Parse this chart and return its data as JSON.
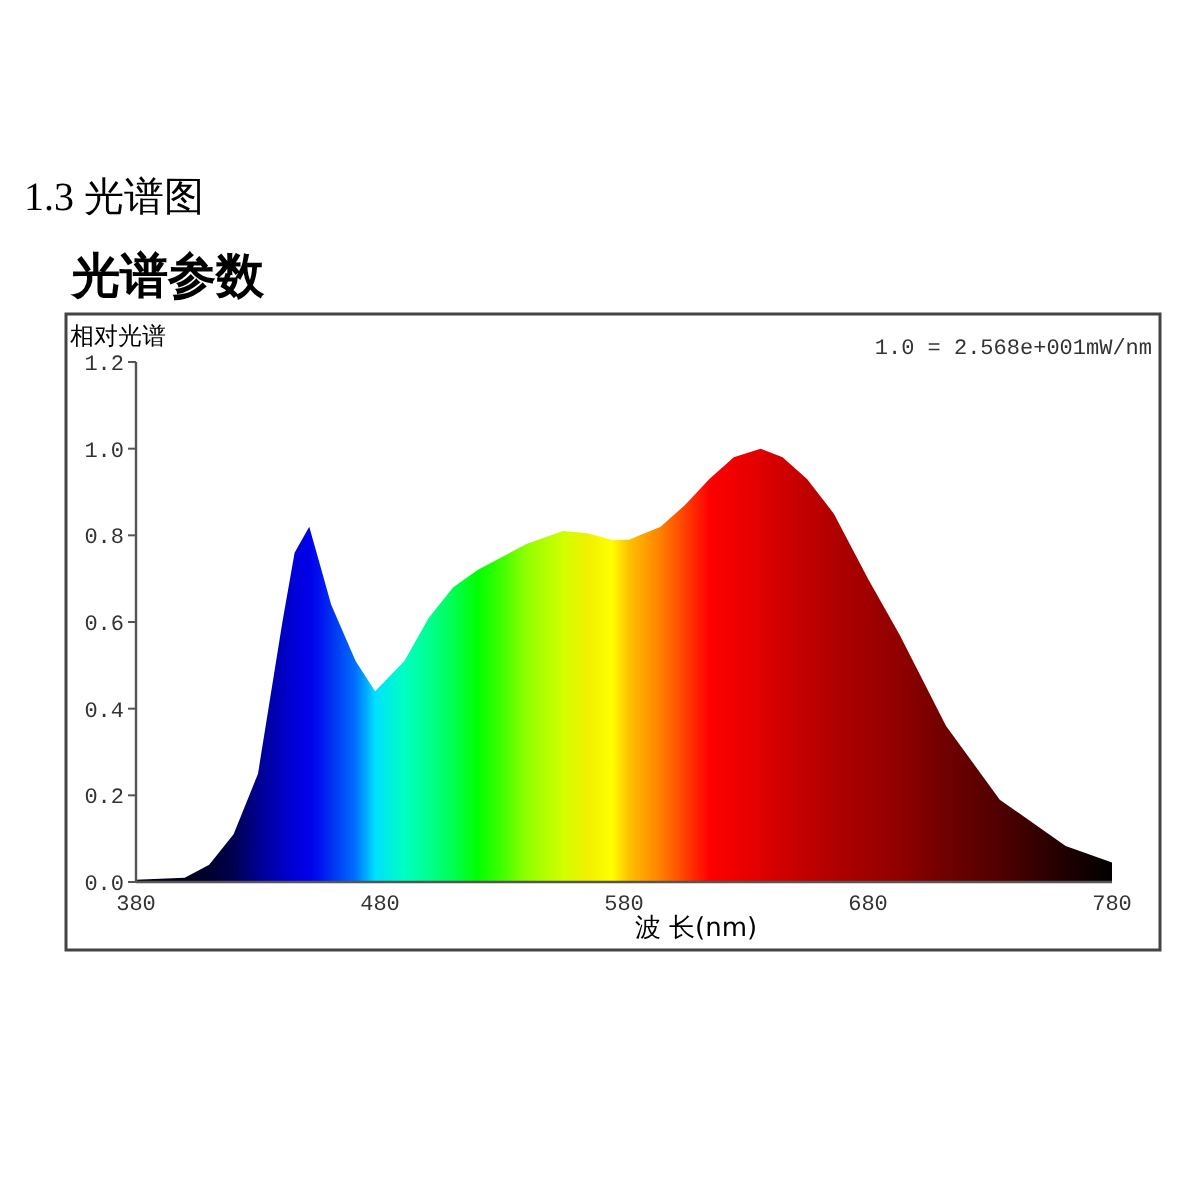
{
  "chart_data": {
    "type": "area",
    "title": "1.3 光谱图",
    "subtitle": "光谱参数",
    "ylabel": "相对光谱",
    "xlabel": "波 长(nm)",
    "annotations": [
      "1.0 = 2.568e+001mW/nm"
    ],
    "x": [
      380,
      400,
      410,
      420,
      430,
      440,
      445,
      451,
      455,
      460,
      470,
      478,
      490,
      500,
      510,
      520,
      530,
      540,
      555,
      565,
      575,
      582,
      595,
      605,
      615,
      625,
      636,
      645,
      655,
      666,
      680,
      693,
      712,
      734,
      761,
      780
    ],
    "series": [
      {
        "values": [
          0.005,
          0.01,
          0.04,
          0.11,
          0.25,
          0.6,
          0.76,
          0.82,
          0.74,
          0.64,
          0.51,
          0.44,
          0.51,
          0.61,
          0.68,
          0.72,
          0.75,
          0.78,
          0.81,
          0.805,
          0.79,
          0.79,
          0.82,
          0.87,
          0.93,
          0.98,
          1.0,
          0.98,
          0.93,
          0.85,
          0.7,
          0.57,
          0.36,
          0.19,
          0.083,
          0.045
        ],
        "colors": [
          "#000010",
          "#000020",
          "#000030",
          "#000050",
          "#000090",
          "#0000c0",
          "#0000d8",
          "#0000e8",
          "#0010f0",
          "#0030f0",
          "#0070ff",
          "#00e0ff",
          "#00ffc0",
          "#00ff90",
          "#00ff50",
          "#00ff00",
          "#40ff00",
          "#90ff00",
          "#d0ff00",
          "#f0f000",
          "#ffff00",
          "#ffc000",
          "#ff8000",
          "#ff4000",
          "#ff0000",
          "#f00000",
          "#e00000",
          "#d00000",
          "#c00000",
          "#b00000",
          "#a00000",
          "#900000",
          "#700000",
          "#500000",
          "#200000",
          "#000000"
        ]
      }
    ],
    "xlim": [
      380,
      780
    ],
    "ylim": [
      0,
      1.2
    ],
    "xticks": [
      380,
      480,
      580,
      680,
      780
    ],
    "yticks": [
      {
        "value": 0,
        "label": "0.0"
      },
      {
        "value": 0.2,
        "label": "0.2"
      },
      {
        "value": 0.4,
        "label": "0.4"
      },
      {
        "value": 0.6,
        "label": "0.6"
      },
      {
        "value": 0.8,
        "label": "0.8"
      },
      {
        "value": 1.0,
        "label": "1.0"
      },
      {
        "value": 1.2,
        "label": "1.2"
      }
    ]
  }
}
